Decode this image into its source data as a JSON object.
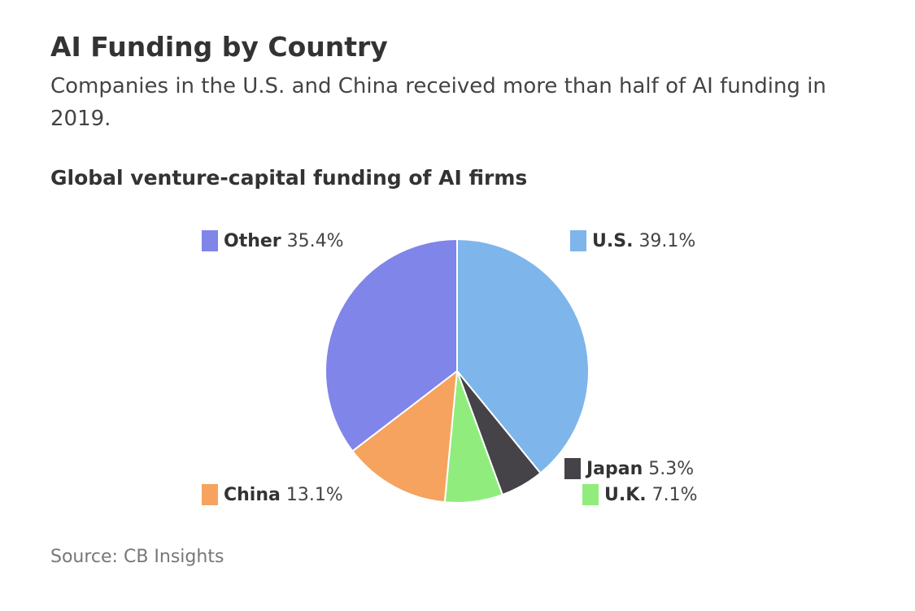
{
  "title": "AI Funding by Country",
  "subtitle": "Companies in the U.S. and China received more than half of AI funding in 2019.",
  "chart_heading": "Global venture-capital funding of AI firms",
  "source": "Source: CB Insights",
  "chart_data": {
    "type": "pie",
    "title": "Global venture-capital funding of AI firms",
    "unit": "%",
    "slices": [
      {
        "name": "U.S.",
        "value": 39.1,
        "label": "39.1%",
        "color": "#7eb5eb"
      },
      {
        "name": "Japan",
        "value": 5.3,
        "label": "5.3%",
        "color": "#454348"
      },
      {
        "name": "U.K.",
        "value": 7.1,
        "label": "7.1%",
        "color": "#90ed7d"
      },
      {
        "name": "China",
        "value": 13.1,
        "label": "13.1%",
        "color": "#f5a35e"
      },
      {
        "name": "Other",
        "value": 35.4,
        "label": "35.4%",
        "color": "#8085e9"
      }
    ],
    "start_angle": "12 o'clock",
    "direction": "clockwise"
  }
}
